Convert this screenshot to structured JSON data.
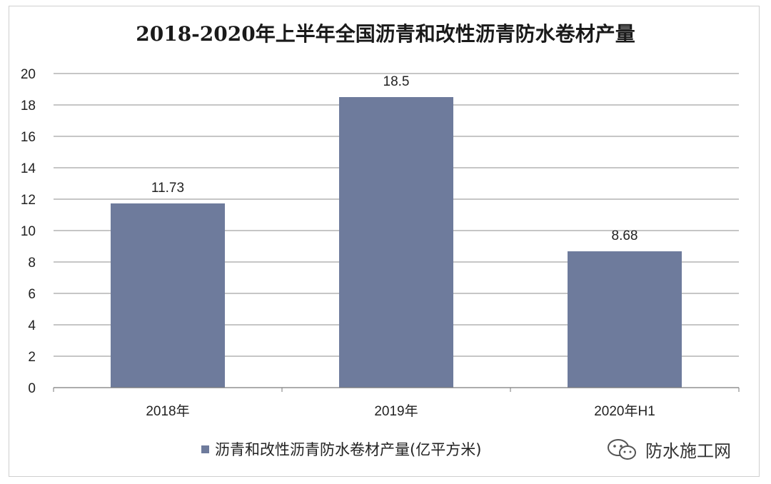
{
  "chart_data": {
    "type": "bar",
    "title": "2018-2020年上半年全国沥青和改性沥青防水卷材产量",
    "categories": [
      "2018年",
      "2019年",
      "2020年H1"
    ],
    "series": [
      {
        "name": "沥青和改性沥青防水卷材产量(亿平方米)",
        "values": [
          11.73,
          18.5,
          8.68
        ]
      }
    ],
    "data_labels": [
      "11.73",
      "18.5",
      "8.68"
    ],
    "ylim": [
      0,
      20
    ],
    "yticks": [
      0,
      2,
      4,
      6,
      8,
      10,
      12,
      14,
      16,
      18,
      20
    ],
    "grid": true,
    "legend_position": "bottom",
    "bar_color": "#6e7b9c"
  },
  "watermark": {
    "text": "防水施工网",
    "icon": "wechat-icon"
  }
}
